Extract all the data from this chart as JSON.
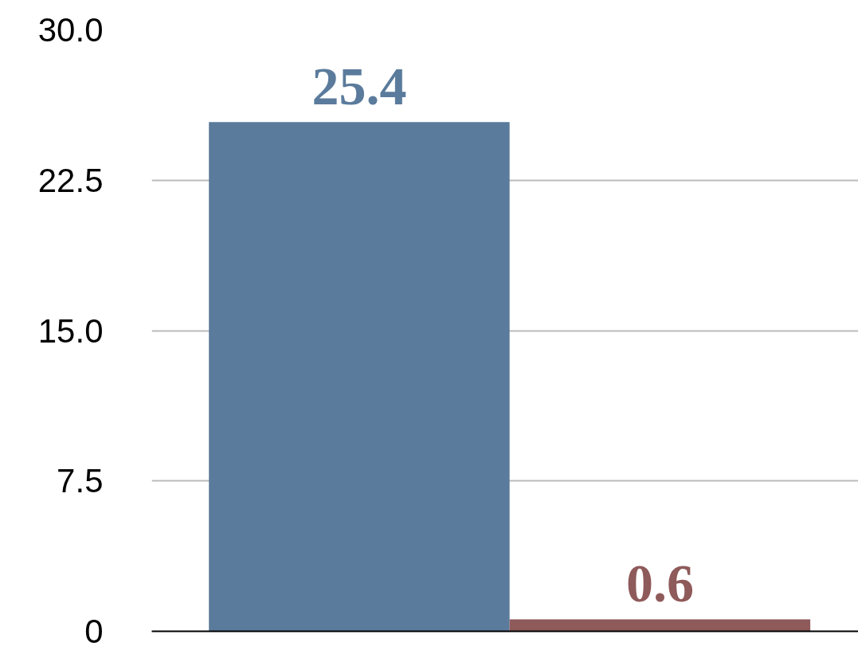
{
  "chart_data": {
    "type": "bar",
    "categories": [
      null,
      null
    ],
    "values": [
      25.4,
      0.6
    ],
    "colors": [
      "#5b7b9c",
      "#8f5a5a"
    ],
    "data_labels": true,
    "ylim": [
      0,
      30
    ],
    "yticks": [
      {
        "value": 0,
        "label": "0"
      },
      7.5,
      {
        "value": 15,
        "label": "15.0"
      },
      22.5,
      {
        "value": 30,
        "label": "30.0"
      }
    ],
    "grid": "y"
  }
}
